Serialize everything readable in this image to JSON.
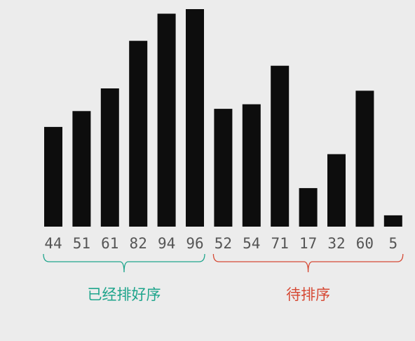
{
  "chart_data": {
    "type": "bar",
    "values": [
      44,
      51,
      61,
      82,
      94,
      96,
      52,
      54,
      71,
      17,
      32,
      60,
      5
    ],
    "categories": [
      "44",
      "51",
      "61",
      "82",
      "94",
      "96",
      "52",
      "54",
      "71",
      "17",
      "32",
      "60",
      "5"
    ],
    "ylim": [
      0,
      96
    ],
    "groups": [
      {
        "label": "已经排好序",
        "start": 0,
        "end": 5,
        "color": "#1fa58c"
      },
      {
        "label": "待排序",
        "start": 6,
        "end": 12,
        "color": "#d64a35"
      }
    ],
    "bar_color": "#0d0d0d",
    "label_color": "#555555"
  }
}
